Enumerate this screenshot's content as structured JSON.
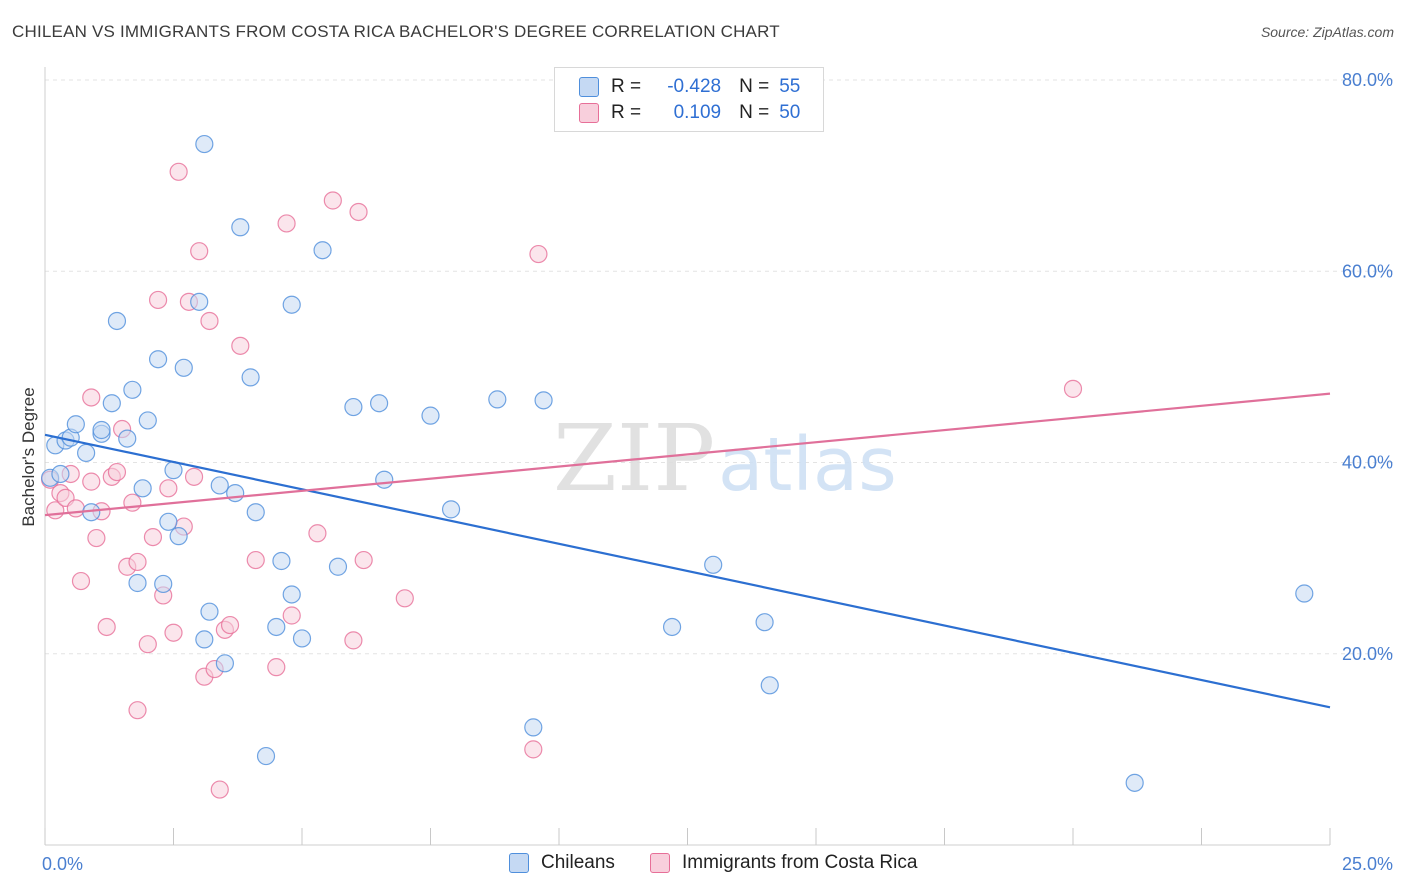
{
  "title": "CHILEAN VS IMMIGRANTS FROM COSTA RICA BACHELOR'S DEGREE CORRELATION CHART",
  "source": "Source: ZipAtlas.com",
  "watermark": {
    "zip": "ZIP",
    "atlas": "atlas"
  },
  "legend": {
    "rows": [
      {
        "r_label": "R =",
        "r_value": "-0.428",
        "n_label": "N =",
        "n_value": "55"
      },
      {
        "r_label": "R =",
        "r_value": "0.109",
        "n_label": "N =",
        "n_value": "50"
      }
    ]
  },
  "bottom_legend": {
    "series1": "Chileans",
    "series2": "Immigrants from Costa Rica"
  },
  "colors": {
    "blue": "#4f8fdc",
    "blue_fill": "#c5d9f3",
    "pink": "#e76f98",
    "pink_fill": "#f8cfdc",
    "blue_line": "#2c6fd1",
    "pink_line": "#e0709a",
    "tick": "#4a7fd0"
  },
  "chart_data": {
    "type": "scatter",
    "title": "CHILEAN VS IMMIGRANTS FROM COSTA RICA BACHELOR'S DEGREE CORRELATION CHART",
    "xlabel": "",
    "ylabel": "Bachelor's Degree",
    "xlim": [
      0,
      25
    ],
    "ylim": [
      0,
      80
    ],
    "x_tick_labels": [
      "0.0%",
      "25.0%"
    ],
    "y_ticks": [
      20,
      40,
      60,
      80
    ],
    "y_tick_labels": [
      "20.0%",
      "40.0%",
      "60.0%",
      "80.0%"
    ],
    "grid": true,
    "legend_position": "top-center",
    "series": [
      {
        "name": "Chileans",
        "r": -0.428,
        "n": 55,
        "trend": {
          "x": [
            0.0,
            25.0
          ],
          "y": [
            42.9,
            14.4
          ]
        },
        "points": [
          [
            0.2,
            41.8
          ],
          [
            0.4,
            42.3
          ],
          [
            0.5,
            42.6
          ],
          [
            0.6,
            44.0
          ],
          [
            0.8,
            41.0
          ],
          [
            0.9,
            34.8
          ],
          [
            1.1,
            43.0
          ],
          [
            1.1,
            43.4
          ],
          [
            1.3,
            46.2
          ],
          [
            1.4,
            54.8
          ],
          [
            1.6,
            42.5
          ],
          [
            1.7,
            47.6
          ],
          [
            1.8,
            27.4
          ],
          [
            1.9,
            37.3
          ],
          [
            2.0,
            44.4
          ],
          [
            2.2,
            50.8
          ],
          [
            2.3,
            27.3
          ],
          [
            2.4,
            33.8
          ],
          [
            2.5,
            39.2
          ],
          [
            2.6,
            32.3
          ],
          [
            2.7,
            49.9
          ],
          [
            3.0,
            56.8
          ],
          [
            3.1,
            21.5
          ],
          [
            3.1,
            73.3
          ],
          [
            3.2,
            24.4
          ],
          [
            3.4,
            37.6
          ],
          [
            3.5,
            19.0
          ],
          [
            3.7,
            36.8
          ],
          [
            3.8,
            64.6
          ],
          [
            4.0,
            48.9
          ],
          [
            4.1,
            34.8
          ],
          [
            4.3,
            9.3
          ],
          [
            4.5,
            22.8
          ],
          [
            4.6,
            29.7
          ],
          [
            4.8,
            56.5
          ],
          [
            4.8,
            26.2
          ],
          [
            5.0,
            21.6
          ],
          [
            5.4,
            62.2
          ],
          [
            5.7,
            29.1
          ],
          [
            6.0,
            45.8
          ],
          [
            6.5,
            46.2
          ],
          [
            6.6,
            38.2
          ],
          [
            7.5,
            44.9
          ],
          [
            7.9,
            35.1
          ],
          [
            8.8,
            46.6
          ],
          [
            9.5,
            12.3
          ],
          [
            9.7,
            46.5
          ],
          [
            12.2,
            22.8
          ],
          [
            13.0,
            29.3
          ],
          [
            14.0,
            23.3
          ],
          [
            14.1,
            16.7
          ],
          [
            21.2,
            6.5
          ],
          [
            24.5,
            26.3
          ],
          [
            0.1,
            38.4
          ],
          [
            0.3,
            38.8
          ]
        ]
      },
      {
        "name": "Immigrants from Costa Rica",
        "r": 0.109,
        "n": 50,
        "trend": {
          "x": [
            0.0,
            25.0
          ],
          "y": [
            34.5,
            47.2
          ]
        },
        "points": [
          [
            0.1,
            38.2
          ],
          [
            0.2,
            35.0
          ],
          [
            0.3,
            36.8
          ],
          [
            0.4,
            36.3
          ],
          [
            0.5,
            38.8
          ],
          [
            0.6,
            35.2
          ],
          [
            0.7,
            27.6
          ],
          [
            0.9,
            38.0
          ],
          [
            0.9,
            46.8
          ],
          [
            1.0,
            32.1
          ],
          [
            1.1,
            34.9
          ],
          [
            1.2,
            22.8
          ],
          [
            1.3,
            38.5
          ],
          [
            1.4,
            39.0
          ],
          [
            1.5,
            43.5
          ],
          [
            1.6,
            29.1
          ],
          [
            1.7,
            35.8
          ],
          [
            1.8,
            29.6
          ],
          [
            1.8,
            14.1
          ],
          [
            2.0,
            21.0
          ],
          [
            2.1,
            32.2
          ],
          [
            2.2,
            57.0
          ],
          [
            2.3,
            26.1
          ],
          [
            2.4,
            37.3
          ],
          [
            2.5,
            22.2
          ],
          [
            2.6,
            70.4
          ],
          [
            2.7,
            33.3
          ],
          [
            2.8,
            56.8
          ],
          [
            2.9,
            38.5
          ],
          [
            3.0,
            62.1
          ],
          [
            3.1,
            17.6
          ],
          [
            3.2,
            54.8
          ],
          [
            3.3,
            18.4
          ],
          [
            3.4,
            5.8
          ],
          [
            3.5,
            22.5
          ],
          [
            3.6,
            23.0
          ],
          [
            3.8,
            52.2
          ],
          [
            4.1,
            29.8
          ],
          [
            4.5,
            18.6
          ],
          [
            4.7,
            65.0
          ],
          [
            4.8,
            24.0
          ],
          [
            5.3,
            32.6
          ],
          [
            5.6,
            67.4
          ],
          [
            6.0,
            21.4
          ],
          [
            6.1,
            66.2
          ],
          [
            6.2,
            29.8
          ],
          [
            7.0,
            25.8
          ],
          [
            9.5,
            10.0
          ],
          [
            9.6,
            61.8
          ],
          [
            20.0,
            47.7
          ]
        ]
      }
    ]
  }
}
